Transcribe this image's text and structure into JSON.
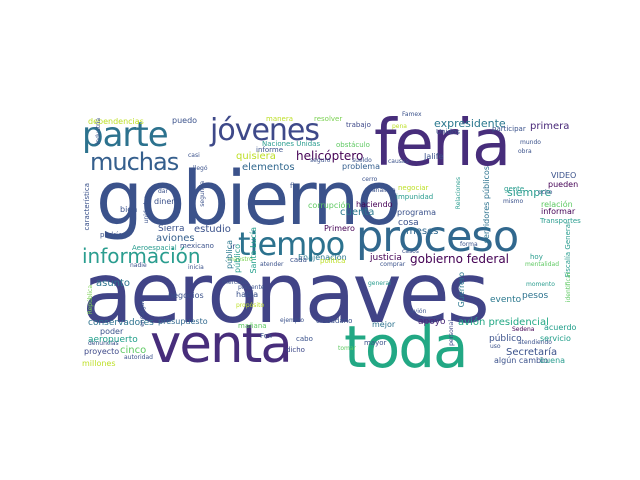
{
  "words": [
    {
      "t": "aeronaves",
      "c": "#414487"
    },
    {
      "t": "gobierno",
      "c": "#3b528b"
    },
    {
      "t": "venta",
      "c": "#472d7b"
    },
    {
      "t": "toda",
      "c": "#22a884"
    },
    {
      "t": "feria",
      "c": "#472d7b"
    },
    {
      "t": "proceso",
      "c": "#31688e"
    },
    {
      "t": "tiempo",
      "c": "#2c728e"
    },
    {
      "t": "parte",
      "c": "#2c728e"
    },
    {
      "t": "jóvenes",
      "c": "#3e4989"
    },
    {
      "t": "muchas",
      "c": "#355f8d"
    },
    {
      "t": "información",
      "c": "#2a9d8f"
    },
    {
      "t": "gobierno federal",
      "c": "#440154"
    },
    {
      "t": "helicóptero",
      "c": "#440154"
    },
    {
      "t": "expresidente",
      "c": "#2a788e"
    },
    {
      "t": "primera",
      "c": "#482878"
    },
    {
      "t": "elementos",
      "c": "#31688e"
    },
    {
      "t": "quisiera",
      "c": "#bddf26"
    },
    {
      "t": "siempre",
      "c": "#2a9d8f"
    },
    {
      "t": "estudio",
      "c": "#3b528b"
    },
    {
      "t": "aviones",
      "c": "#355f8d"
    },
    {
      "t": "Sierra",
      "c": "#3b528b"
    },
    {
      "t": "meses",
      "c": "#31688e"
    },
    {
      "t": "cuenta",
      "c": "#2a788e"
    },
    {
      "t": "programa",
      "c": "#3b528b"
    },
    {
      "t": "cosa",
      "c": "#3b528b"
    },
    {
      "t": "justicia",
      "c": "#440154"
    },
    {
      "t": "asunto",
      "c": "#2c728e"
    },
    {
      "t": "negocios",
      "c": "#3b528b"
    },
    {
      "t": "conservadores",
      "c": "#2c728e"
    },
    {
      "t": "presupuesto",
      "c": "#31688e"
    },
    {
      "t": "poder",
      "c": "#3b528b"
    },
    {
      "t": "aeropuerto",
      "c": "#1f9e89"
    },
    {
      "t": "cinco",
      "c": "#5ec962"
    },
    {
      "t": "proyecto",
      "c": "#3e4989"
    },
    {
      "t": "millones",
      "c": "#bddf26"
    },
    {
      "t": "apoyo",
      "c": "#482878"
    },
    {
      "t": "avión presidencial",
      "c": "#22a884"
    },
    {
      "t": "Secretaría",
      "c": "#3b528b"
    },
    {
      "t": "público",
      "c": "#3b528b"
    },
    {
      "t": "evento",
      "c": "#2a788e"
    },
    {
      "t": "pesos",
      "c": "#2c728e"
    },
    {
      "t": "corrupción",
      "c": "#5ec962"
    },
    {
      "t": "Primero",
      "c": "#440154"
    },
    {
      "t": "problema",
      "c": "#355f8d"
    },
    {
      "t": "haciendo",
      "c": "#440154"
    },
    {
      "t": "dinero",
      "c": "#3b528b"
    },
    {
      "t": "puedo",
      "c": "#3b528b"
    },
    {
      "t": "dependencias",
      "c": "#bddf26"
    },
    {
      "t": "trabajo",
      "c": "#3e4989"
    },
    {
      "t": "resolver",
      "c": "#7ad151"
    },
    {
      "t": "manera",
      "c": "#bddf26"
    },
    {
      "t": "pueden",
      "c": "#440154"
    },
    {
      "t": "VIDEO",
      "c": "#3b528b"
    },
    {
      "t": "informar",
      "c": "#440154"
    },
    {
      "t": "relación",
      "c": "#5ec962"
    },
    {
      "t": "Transportes",
      "c": "#2a9d8f"
    },
    {
      "t": "acuerdo",
      "c": "#1f9e89"
    },
    {
      "t": "servicio",
      "c": "#1f9e89"
    },
    {
      "t": "algún cambio",
      "c": "#3b528b"
    },
    {
      "t": "buena",
      "c": "#2a9d8f"
    },
    {
      "t": "Fiscalía General",
      "c": "#2a9d8f"
    },
    {
      "t": "Sedena",
      "c": "#440154"
    },
    {
      "t": "atendiendo",
      "c": "#3b528b"
    },
    {
      "t": "servidores públicos",
      "c": "#2c728e"
    },
    {
      "t": "Naciones Unidas",
      "c": "#2a9d8f"
    },
    {
      "t": "obstáculo",
      "c": "#5ec962"
    },
    {
      "t": "informe",
      "c": "#3b528b"
    },
    {
      "t": "Santa Lucía",
      "c": "#1f9e89"
    },
    {
      "t": "público",
      "c": "#2a9d8f"
    },
    {
      "t": "Enajenación",
      "c": "#2a788e"
    },
    {
      "t": "ciudadano",
      "c": "#3b528b"
    },
    {
      "t": "mañana",
      "c": "#5ec962"
    },
    {
      "t": "mejor",
      "c": "#2c728e"
    },
    {
      "t": "Guerrero",
      "c": "#2a788e"
    },
    {
      "t": "personal",
      "c": "#3e4989"
    },
    {
      "t": "tomar",
      "c": "#5ec962"
    },
    {
      "t": "mayor",
      "c": "#3b528b"
    },
    {
      "t": "cabo",
      "c": "#3b528b"
    },
    {
      "t": "dicho",
      "c": "#3e4989"
    },
    {
      "t": "Fox",
      "c": "#3b528b"
    },
    {
      "t": "había",
      "c": "#3b528b"
    },
    {
      "t": "cada",
      "c": "#3b528b"
    },
    {
      "t": "política",
      "c": "#bddf26"
    },
    {
      "t": "atender",
      "c": "#3b528b"
    },
    {
      "t": "mexicano",
      "c": "#3b528b"
    },
    {
      "t": "Aeroespacial",
      "c": "#2a9d8f"
    },
    {
      "t": "podría",
      "c": "#3b528b"
    },
    {
      "t": "bien",
      "c": "#3b528b"
    },
    {
      "t": "dar",
      "c": "#3b528b"
    },
    {
      "t": "segunda",
      "c": "#3b528b"
    },
    {
      "t": "llegó",
      "c": "#3b528b"
    },
    {
      "t": "casi",
      "c": "#3b528b"
    },
    {
      "t": "industria",
      "c": "#3b528b"
    },
    {
      "t": "característica",
      "c": "#3b528b"
    },
    {
      "t": "República",
      "c": "#7ad151"
    },
    {
      "t": "denuncias",
      "c": "#3b528b"
    },
    {
      "t": "autoridad",
      "c": "#3b528b"
    },
    {
      "t": "nadie",
      "c": "#3b528b"
    },
    {
      "t": "propósito",
      "c": "#bddf26"
    },
    {
      "t": "presente",
      "c": "#3b528b"
    },
    {
      "t": "mercado",
      "c": "#3b528b"
    },
    {
      "t": "ejemplo",
      "c": "#3b528b"
    },
    {
      "t": "inicia",
      "c": "#3b528b"
    },
    {
      "t": "maestro",
      "c": "#7ad151"
    },
    {
      "t": "Jalife",
      "c": "#3b528b"
    },
    {
      "t": "causas",
      "c": "#3b528b"
    },
    {
      "t": "Famex",
      "c": "#3b528b"
    },
    {
      "t": "pena",
      "c": "#bddf26"
    },
    {
      "t": "Unidos",
      "c": "#3b528b"
    },
    {
      "t": "participar",
      "c": "#3b528b"
    },
    {
      "t": "mundo",
      "c": "#3b528b"
    },
    {
      "t": "obra",
      "c": "#3b528b"
    },
    {
      "t": "gente",
      "c": "#2a9d8f"
    },
    {
      "t": "Relaciones",
      "c": "#2a9d8f"
    },
    {
      "t": "mismo",
      "c": "#3b528b"
    },
    {
      "t": "negociar",
      "c": "#bddf26"
    },
    {
      "t": "impunidad",
      "c": "#2a9d8f"
    },
    {
      "t": "analista",
      "c": "#3b528b"
    },
    {
      "t": "cerro",
      "c": "#3b528b"
    },
    {
      "t": "fin",
      "c": "#3b528b"
    },
    {
      "t": "seguro",
      "c": "#3b528b"
    },
    {
      "t": "sueldo",
      "c": "#3b528b"
    },
    {
      "t": "casos",
      "c": "#3b528b"
    },
    {
      "t": "forma",
      "c": "#3b528b"
    },
    {
      "t": "ir",
      "c": "#3b528b"
    },
    {
      "t": "hoy",
      "c": "#2a9d8f"
    },
    {
      "t": "mentalidad",
      "c": "#5ec962"
    },
    {
      "t": "uso",
      "c": "#3b528b"
    },
    {
      "t": "avión",
      "c": "#3b528b"
    },
    {
      "t": "general",
      "c": "#2a9d8f"
    },
    {
      "t": "identificar",
      "c": "#5ec962"
    },
    {
      "t": "comprar",
      "c": "#3b528b"
    },
    {
      "t": "momento",
      "c": "#2a9d8f"
    },
    {
      "t": "ocho",
      "c": "#3b528b"
    },
    {
      "t": "encargar",
      "c": "#3b528b"
    },
    {
      "t": "unidades",
      "c": "#3b528b"
    },
    {
      "t": "pública",
      "c": "#2a788e"
    }
  ]
}
